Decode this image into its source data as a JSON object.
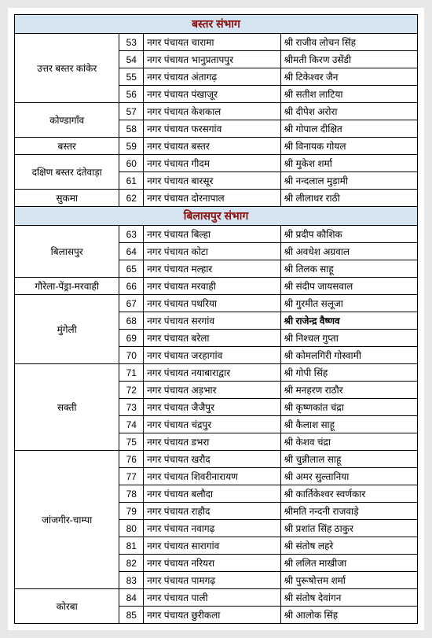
{
  "sections": [
    {
      "title": "बस्तर संभाग",
      "groups": [
        {
          "district": "उत्तर बस्तर कांकेर",
          "rows": [
            {
              "num": "53",
              "panchayat": "नगर पंचायत चारामा",
              "name": "श्री राजीव लोचन सिंह"
            },
            {
              "num": "54",
              "panchayat": "नगर पंचायत भानुप्रतापपुर",
              "name": "श्रीमती किरण उसेंडी"
            },
            {
              "num": "55",
              "panchayat": "नगर पंचायत अंतागढ़",
              "name": "श्री टिकेश्वर जैन"
            },
            {
              "num": "56",
              "panchayat": "नगर पंचायत पंखाजूर",
              "name": "श्री सतीश लाटिया"
            }
          ]
        },
        {
          "district": "कोण्डागॉंव",
          "rows": [
            {
              "num": "57",
              "panchayat": "नगर पंचायत केशकाल",
              "name": "श्री दीपेश अरोरा"
            },
            {
              "num": "58",
              "panchayat": "नगर पंचायत फरसगांव",
              "name": "श्री गोपाल दीक्षित"
            }
          ]
        },
        {
          "district": "बस्तर",
          "rows": [
            {
              "num": "59",
              "panchayat": "नगर पंचायत बस्तर",
              "name": "श्री विनायक गोयल"
            }
          ]
        },
        {
          "district": "दक्षिण बस्तर दंतेवाड़ा",
          "rows": [
            {
              "num": "60",
              "panchayat": "नगर पंचायत गीदम",
              "name": "श्री मुकेश शर्मा"
            },
            {
              "num": "61",
              "panchayat": "नगर पंचायत बारसूर",
              "name": "श्री नन्दलाल मुड़ामी"
            }
          ]
        },
        {
          "district": "सुकमा",
          "rows": [
            {
              "num": "62",
              "panchayat": "नगर पंचायत दोरनापाल",
              "name": "श्री लीलाधर राठी"
            }
          ]
        }
      ]
    },
    {
      "title": "बिलासपुर संभाग",
      "groups": [
        {
          "district": "बिलासपुर",
          "rows": [
            {
              "num": "63",
              "panchayat": "नगर पंचायत बिल्हा",
              "name": "श्री प्रदीप कौशिक"
            },
            {
              "num": "64",
              "panchayat": "नगर पंचायत कोटा",
              "name": "श्री अवधेश अग्रवाल"
            },
            {
              "num": "65",
              "panchayat": "नगर पंचायत मल्हार",
              "name": "श्री तिलक साहू"
            }
          ]
        },
        {
          "district": "गौरेला-पेंड्रा-मरवाही",
          "rows": [
            {
              "num": "66",
              "panchayat": "नगर पंचायत मरवाही",
              "name": "श्री संदीप जायसवाल"
            }
          ]
        },
        {
          "district": "मुंगेली",
          "rows": [
            {
              "num": "67",
              "panchayat": "नगर पंचायत पथरिया",
              "name": "श्री गुरमीत सलूजा"
            },
            {
              "num": "68",
              "panchayat": "नगर पंचायत सरगांव",
              "name": "श्री राजेन्द्र वैष्णव",
              "bold": true
            },
            {
              "num": "69",
              "panchayat": "नगर पंचायत बरेला",
              "name": "श्री निश्चल गुप्ता"
            },
            {
              "num": "70",
              "panchayat": "नगर पंचायत जरहागांव",
              "name": "श्री कोमलगिरी गोस्वामी"
            }
          ]
        },
        {
          "district": "सक्ती",
          "rows": [
            {
              "num": "71",
              "panchayat": "नगर पंचायत नयाबाराद्वार",
              "name": "श्री गोपी सिंह"
            },
            {
              "num": "72",
              "panchayat": "नगर पंचायत अड़भार",
              "name": "श्री मनहरण राठौर"
            },
            {
              "num": "73",
              "panchayat": "नगर पंचायत जैजैपुर",
              "name": "श्री कृष्णकांत चंद्रा"
            },
            {
              "num": "74",
              "panchayat": "नगर पंचायत चंद्रपुर",
              "name": "श्री कैलाश साहू"
            },
            {
              "num": "75",
              "panchayat": "नगर पंचायत डभरा",
              "name": "श्री केशव चंद्रा"
            }
          ]
        },
        {
          "district": "जांजगीर-चाम्पा",
          "rows": [
            {
              "num": "76",
              "panchayat": "नगर पंचायत खरौद",
              "name": "श्री चुन्नीलाल साहू"
            },
            {
              "num": "77",
              "panchayat": "नगर पंचायत शिवरीनारायण",
              "name": "श्री अमर सुल्तानिया"
            },
            {
              "num": "78",
              "panchayat": "नगर पंचायत बलौदा",
              "name": "श्री कार्तिकेश्वर स्वर्णकार"
            },
            {
              "num": "79",
              "panchayat": "नगर पंचायत राहौद",
              "name": "श्रीमति नन्दनी राजवाड़े"
            },
            {
              "num": "80",
              "panchayat": "नगर पंचायत नवागढ़",
              "name": "श्री प्रशांत सिंह ठाकुर"
            },
            {
              "num": "81",
              "panchayat": "नगर पंचायत सारागांव",
              "name": "श्री संतोष लहरे"
            },
            {
              "num": "82",
              "panchayat": "नगर पंचायत नरियरा",
              "name": "श्री ललित माखीजा"
            },
            {
              "num": "83",
              "panchayat": "नगर पंचायत पामगढ़",
              "name": "श्री पुरूषोत्तम शर्मा"
            }
          ]
        },
        {
          "district": "कोरबा",
          "rows": [
            {
              "num": "84",
              "panchayat": "नगर पंचायत पाली",
              "name": "श्री संतोष देवांगन"
            },
            {
              "num": "85",
              "panchayat": "नगर पंचायत छुरीकला",
              "name": "श्री आलोक सिंह"
            }
          ]
        }
      ]
    }
  ]
}
